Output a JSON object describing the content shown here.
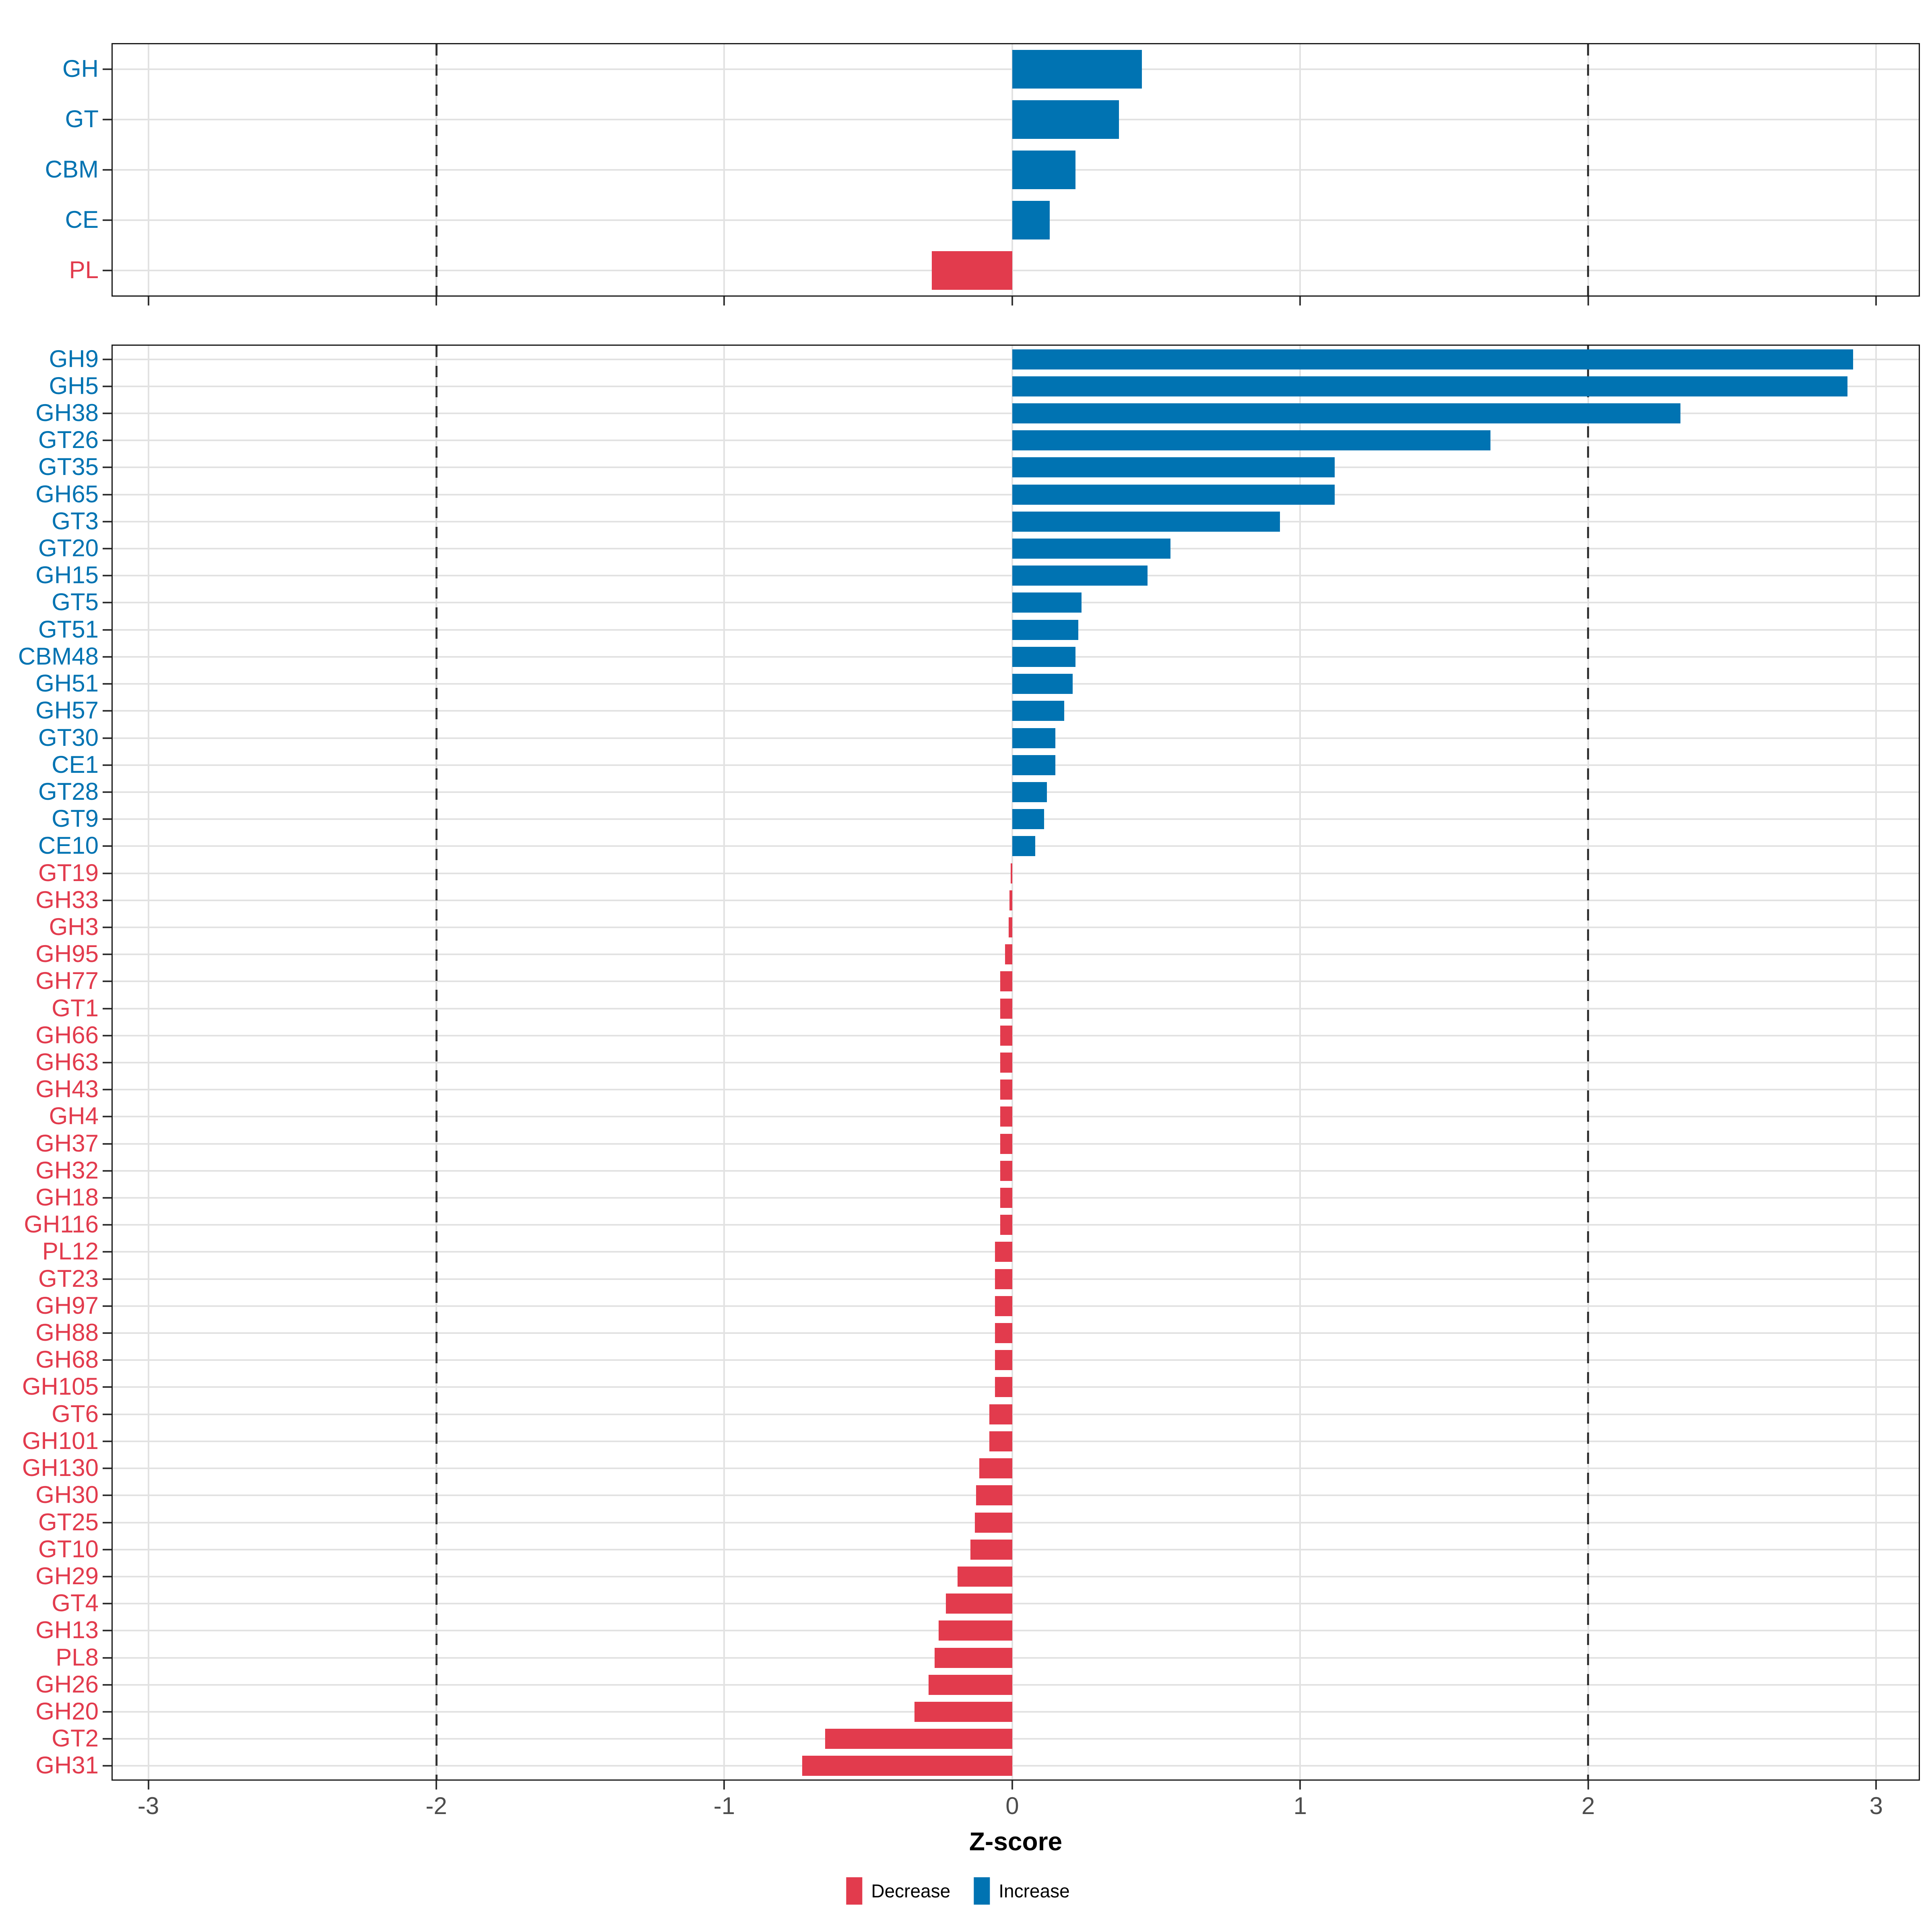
{
  "colors": {
    "increase": "#0073B2",
    "decrease": "#E23B4D",
    "grid": "#E2E2E2",
    "axis_text": "#4D4D4D",
    "panel_border": "#1A1A1A",
    "dashed_line": "#333333",
    "tick": "#333333"
  },
  "axis": {
    "label": "Z-score",
    "ticks": [
      -3,
      -2,
      -1,
      0,
      1,
      2,
      3
    ],
    "range_min": -3.128,
    "range_max": 3.152,
    "dashed_at": [
      -2,
      2
    ],
    "grid": "on"
  },
  "legend": {
    "position": "bottom-center",
    "items": [
      {
        "label": "Decrease",
        "key": "decrease"
      },
      {
        "label": "Increase",
        "key": "increase"
      }
    ]
  },
  "chart_data": [
    {
      "type": "bar",
      "orientation": "horizontal",
      "panel": "family-summary",
      "categories": [
        "GH",
        "GT",
        "CBM",
        "CE",
        "PL"
      ],
      "values": [
        0.45,
        0.37,
        0.22,
        0.13,
        -0.28
      ],
      "xlabel": "Z-score",
      "xlim": [
        -3.128,
        3.152
      ]
    },
    {
      "type": "bar",
      "orientation": "horizontal",
      "panel": "subfamily-detail",
      "categories": [
        "GH9",
        "GH5",
        "GH38",
        "GT26",
        "GT35",
        "GH65",
        "GT3",
        "GT20",
        "GH15",
        "GT5",
        "GT51",
        "CBM48",
        "GH51",
        "GH57",
        "GT30",
        "CE1",
        "GT28",
        "GT9",
        "CE10",
        "GT19",
        "GH33",
        "GH3",
        "GH95",
        "GH77",
        "GT1",
        "GH66",
        "GH63",
        "GH43",
        "GH4",
        "GH37",
        "GH32",
        "GH18",
        "GH116",
        "PL12",
        "GT23",
        "GH97",
        "GH88",
        "GH68",
        "GH105",
        "GT6",
        "GH101",
        "GH130",
        "GH30",
        "GT25",
        "GT10",
        "GH29",
        "GT4",
        "GH13",
        "PL8",
        "GH26",
        "GH20",
        "GT2",
        "GH31"
      ],
      "values": [
        2.92,
        2.9,
        2.32,
        1.66,
        1.12,
        1.12,
        0.93,
        0.55,
        0.47,
        0.24,
        0.23,
        0.22,
        0.21,
        0.18,
        0.15,
        0.15,
        0.12,
        0.11,
        0.08,
        -0.005,
        -0.01,
        -0.012,
        -0.025,
        -0.042,
        -0.042,
        -0.042,
        -0.042,
        -0.042,
        -0.042,
        -0.042,
        -0.042,
        -0.042,
        -0.042,
        -0.06,
        -0.06,
        -0.06,
        -0.06,
        -0.06,
        -0.06,
        -0.08,
        -0.08,
        -0.115,
        -0.125,
        -0.13,
        -0.145,
        -0.19,
        -0.23,
        -0.255,
        -0.27,
        -0.29,
        -0.34,
        -0.65,
        -0.73
      ],
      "xlabel": "Z-score",
      "xlim": [
        -3.128,
        3.152
      ]
    }
  ]
}
